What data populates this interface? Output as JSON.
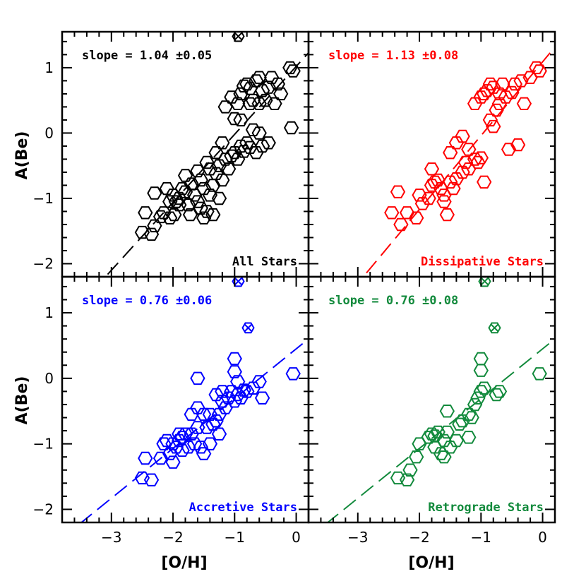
{
  "figure": {
    "xlabel": "[O/H]",
    "ylabel": "A(Be)",
    "xlim": [
      -3.8,
      0.2
    ],
    "ylim": [
      -2.2,
      1.55
    ],
    "xticks": [
      -3,
      -2,
      -1,
      0
    ],
    "yticks": [
      -2,
      -1,
      0,
      1
    ]
  },
  "chart_data": [
    {
      "type": "scatter",
      "name": "all",
      "color": "#000000",
      "label": "All Stars",
      "slope_text": "slope = 1.04 ±0.05",
      "fit": {
        "slope": 1.04,
        "intercept": 1.02
      },
      "crossed_points": [
        [
          -0.94,
          1.48
        ]
      ],
      "points": [
        [
          -2.5,
          -1.52
        ],
        [
          -2.35,
          -1.55
        ],
        [
          -2.3,
          -1.42
        ],
        [
          -2.45,
          -1.22
        ],
        [
          -2.2,
          -1.28
        ],
        [
          -2.15,
          -1.22
        ],
        [
          -2.05,
          -1.3
        ],
        [
          -1.98,
          -1.25
        ],
        [
          -2.3,
          -0.92
        ],
        [
          -2.1,
          -0.85
        ],
        [
          -2.0,
          -0.95
        ],
        [
          -1.95,
          -1.05
        ],
        [
          -1.9,
          -1.1
        ],
        [
          -1.85,
          -0.85
        ],
        [
          -1.8,
          -0.9
        ],
        [
          -1.75,
          -1.1
        ],
        [
          -1.7,
          -0.78
        ],
        [
          -1.65,
          -0.95
        ],
        [
          -1.6,
          -1.05
        ],
        [
          -1.55,
          -1.15
        ],
        [
          -1.55,
          -0.72
        ],
        [
          -1.5,
          -0.85
        ],
        [
          -1.45,
          -1.2
        ],
        [
          -1.4,
          -0.95
        ],
        [
          -1.4,
          -0.55
        ],
        [
          -1.35,
          -0.8
        ],
        [
          -1.3,
          -0.62
        ],
        [
          -1.25,
          -0.5
        ],
        [
          -1.2,
          -0.72
        ],
        [
          -1.15,
          -0.4
        ],
        [
          -1.1,
          -0.55
        ],
        [
          -1.05,
          -0.35
        ],
        [
          -1.0,
          -0.3
        ],
        [
          -0.95,
          -0.4
        ],
        [
          -0.9,
          -0.2
        ],
        [
          -0.85,
          -0.28
        ],
        [
          -0.8,
          -0.15
        ],
        [
          -0.75,
          -0.22
        ],
        [
          -0.7,
          0.05
        ],
        [
          -0.65,
          -0.3
        ],
        [
          -1.8,
          -0.65
        ],
        [
          -1.6,
          -0.58
        ],
        [
          -1.9,
          -1.0
        ],
        [
          -2.05,
          -1.05
        ],
        [
          -1.72,
          -1.25
        ],
        [
          -1.5,
          -1.3
        ],
        [
          -1.35,
          -1.25
        ],
        [
          -1.25,
          -1.0
        ],
        [
          -0.9,
          0.2
        ],
        [
          -1.0,
          0.22
        ],
        [
          -1.15,
          0.4
        ],
        [
          -1.05,
          0.55
        ],
        [
          -0.95,
          0.45
        ],
        [
          -0.9,
          0.6
        ],
        [
          -0.85,
          0.72
        ],
        [
          -0.8,
          0.75
        ],
        [
          -0.75,
          0.68
        ],
        [
          -0.7,
          0.5
        ],
        [
          -0.6,
          0.45
        ],
        [
          -0.55,
          0.65
        ],
        [
          -0.45,
          0.7
        ],
        [
          -0.4,
          0.85
        ],
        [
          -0.3,
          0.75
        ],
        [
          -0.25,
          0.6
        ],
        [
          -0.6,
          0.85
        ],
        [
          -0.5,
          0.5
        ],
        [
          -0.35,
          0.45
        ],
        [
          -0.1,
          1.0
        ],
        [
          -0.05,
          0.95
        ],
        [
          -0.08,
          0.08
        ],
        [
          -0.55,
          -0.2
        ],
        [
          -0.45,
          -0.15
        ],
        [
          -0.65,
          0.8
        ],
        [
          -1.2,
          -0.15
        ],
        [
          -1.3,
          -0.3
        ],
        [
          -1.45,
          -0.45
        ],
        [
          -0.6,
          0.0
        ],
        [
          -0.75,
          0.45
        ]
      ]
    },
    {
      "type": "scatter",
      "name": "dissipative",
      "color": "#ff0000",
      "label": "Dissipative Stars",
      "slope_text": "slope = 1.13 ±0.08",
      "fit": {
        "slope": 1.13,
        "intercept": 1.09
      },
      "crossed_points": [],
      "points": [
        [
          -2.45,
          -1.22
        ],
        [
          -2.3,
          -1.4
        ],
        [
          -2.2,
          -1.22
        ],
        [
          -2.05,
          -1.3
        ],
        [
          -1.95,
          -1.08
        ],
        [
          -1.85,
          -1.0
        ],
        [
          -1.8,
          -0.8
        ],
        [
          -1.75,
          -0.75
        ],
        [
          -1.7,
          -0.72
        ],
        [
          -1.65,
          -0.85
        ],
        [
          -1.6,
          -1.05
        ],
        [
          -1.55,
          -1.25
        ],
        [
          -1.5,
          -0.75
        ],
        [
          -1.45,
          -0.85
        ],
        [
          -1.4,
          -0.7
        ],
        [
          -1.3,
          -0.6
        ],
        [
          -1.25,
          -0.45
        ],
        [
          -1.2,
          -0.55
        ],
        [
          -1.1,
          -0.4
        ],
        [
          -1.05,
          -0.45
        ],
        [
          -1.0,
          -0.38
        ],
        [
          -0.95,
          -0.75
        ],
        [
          -1.8,
          -0.55
        ],
        [
          -2.0,
          -0.95
        ],
        [
          -2.35,
          -0.9
        ],
        [
          -1.6,
          -0.95
        ],
        [
          -1.5,
          -0.3
        ],
        [
          -1.4,
          -0.15
        ],
        [
          -1.3,
          -0.05
        ],
        [
          -1.2,
          -0.25
        ],
        [
          -0.85,
          0.2
        ],
        [
          -0.8,
          0.1
        ],
        [
          -0.75,
          0.35
        ],
        [
          -1.0,
          0.55
        ],
        [
          -1.1,
          0.45
        ],
        [
          -0.9,
          0.65
        ],
        [
          -0.85,
          0.75
        ],
        [
          -0.8,
          0.7
        ],
        [
          -0.7,
          0.6
        ],
        [
          -0.6,
          0.55
        ],
        [
          -0.5,
          0.62
        ],
        [
          -0.45,
          0.75
        ],
        [
          -0.35,
          0.8
        ],
        [
          -0.3,
          0.45
        ],
        [
          -0.2,
          0.85
        ],
        [
          -0.1,
          1.0
        ],
        [
          -0.05,
          0.95
        ],
        [
          -0.4,
          -0.18
        ],
        [
          -0.55,
          -0.25
        ],
        [
          -0.7,
          0.45
        ],
        [
          -0.95,
          0.6
        ],
        [
          -0.65,
          0.75
        ]
      ]
    },
    {
      "type": "scatter",
      "name": "accretive",
      "color": "#0000ff",
      "label": "Accretive Stars",
      "slope_text": "slope = 0.76 ±0.06",
      "fit": {
        "slope": 0.76,
        "intercept": 0.45
      },
      "crossed_points": [
        [
          -0.94,
          1.48
        ],
        [
          -0.78,
          0.77
        ]
      ],
      "points": [
        [
          -2.5,
          -1.52
        ],
        [
          -2.35,
          -1.55
        ],
        [
          -2.45,
          -1.22
        ],
        [
          -2.2,
          -1.22
        ],
        [
          -2.15,
          -1.0
        ],
        [
          -2.1,
          -0.95
        ],
        [
          -2.05,
          -1.15
        ],
        [
          -2.0,
          -1.28
        ],
        [
          -1.95,
          -1.05
        ],
        [
          -1.9,
          -0.95
        ],
        [
          -1.85,
          -0.9
        ],
        [
          -1.8,
          -0.85
        ],
        [
          -1.75,
          -1.05
        ],
        [
          -1.7,
          -0.85
        ],
        [
          -1.65,
          -1.0
        ],
        [
          -1.6,
          -0.75
        ],
        [
          -1.55,
          -1.05
        ],
        [
          -1.5,
          -1.15
        ],
        [
          -1.45,
          -0.75
        ],
        [
          -1.4,
          -1.0
        ],
        [
          -1.35,
          -0.7
        ],
        [
          -1.3,
          -0.65
        ],
        [
          -1.25,
          -0.55
        ],
        [
          -1.2,
          -0.35
        ],
        [
          -1.15,
          -0.45
        ],
        [
          -1.1,
          -0.3
        ],
        [
          -1.05,
          -0.2
        ],
        [
          -1.0,
          -0.35
        ],
        [
          -0.95,
          -0.25
        ],
        [
          -0.9,
          -0.3
        ],
        [
          -0.85,
          -0.18
        ],
        [
          -0.8,
          -0.2
        ],
        [
          -0.7,
          -0.15
        ],
        [
          -0.6,
          -0.05
        ],
        [
          -0.55,
          -0.3
        ],
        [
          -0.05,
          0.07
        ],
        [
          -1.6,
          -0.45
        ],
        [
          -1.4,
          -0.55
        ],
        [
          -1.2,
          -0.2
        ],
        [
          -1.0,
          0.3
        ],
        [
          -1.0,
          0.1
        ],
        [
          -1.3,
          -0.25
        ],
        [
          -1.6,
          0.0
        ],
        [
          -1.7,
          -0.55
        ],
        [
          -2.0,
          -1.0
        ],
        [
          -1.85,
          -1.1
        ],
        [
          -0.95,
          -0.05
        ],
        [
          -1.25,
          -0.85
        ],
        [
          -1.5,
          -0.55
        ],
        [
          -1.9,
          -0.85
        ]
      ]
    },
    {
      "type": "scatter",
      "name": "retrograde",
      "color": "#128a3c",
      "label": "Retrograde Stars",
      "slope_text": "slope = 0.76 ±0.08",
      "fit": {
        "slope": 0.76,
        "intercept": 0.45
      },
      "crossed_points": [
        [
          -0.94,
          1.48
        ],
        [
          -0.78,
          0.77
        ]
      ],
      "points": [
        [
          -2.35,
          -1.52
        ],
        [
          -2.2,
          -1.55
        ],
        [
          -2.15,
          -1.4
        ],
        [
          -2.05,
          -1.2
        ],
        [
          -2.0,
          -1.0
        ],
        [
          -1.85,
          -0.9
        ],
        [
          -1.8,
          -0.85
        ],
        [
          -1.75,
          -0.88
        ],
        [
          -1.7,
          -0.82
        ],
        [
          -1.65,
          -1.15
        ],
        [
          -1.6,
          -0.95
        ],
        [
          -1.55,
          -0.82
        ],
        [
          -1.5,
          -1.05
        ],
        [
          -1.4,
          -0.95
        ],
        [
          -1.35,
          -0.7
        ],
        [
          -1.3,
          -0.65
        ],
        [
          -1.2,
          -0.55
        ],
        [
          -1.15,
          -0.6
        ],
        [
          -1.1,
          -0.4
        ],
        [
          -1.05,
          -0.3
        ],
        [
          -1.0,
          -0.2
        ],
        [
          -0.95,
          -0.15
        ],
        [
          -0.75,
          -0.25
        ],
        [
          -0.7,
          -0.2
        ],
        [
          -0.05,
          0.07
        ],
        [
          -1.0,
          0.3
        ],
        [
          -1.0,
          0.12
        ],
        [
          -1.55,
          -0.5
        ],
        [
          -1.6,
          -1.2
        ],
        [
          -1.2,
          -0.9
        ],
        [
          -1.75,
          -1.05
        ]
      ]
    }
  ],
  "panel_labels": {
    "all": "All Stars",
    "dissipative": "Dissipative Stars",
    "accretive": "Accretive Stars",
    "retrograde": "Retrograde Stars"
  }
}
